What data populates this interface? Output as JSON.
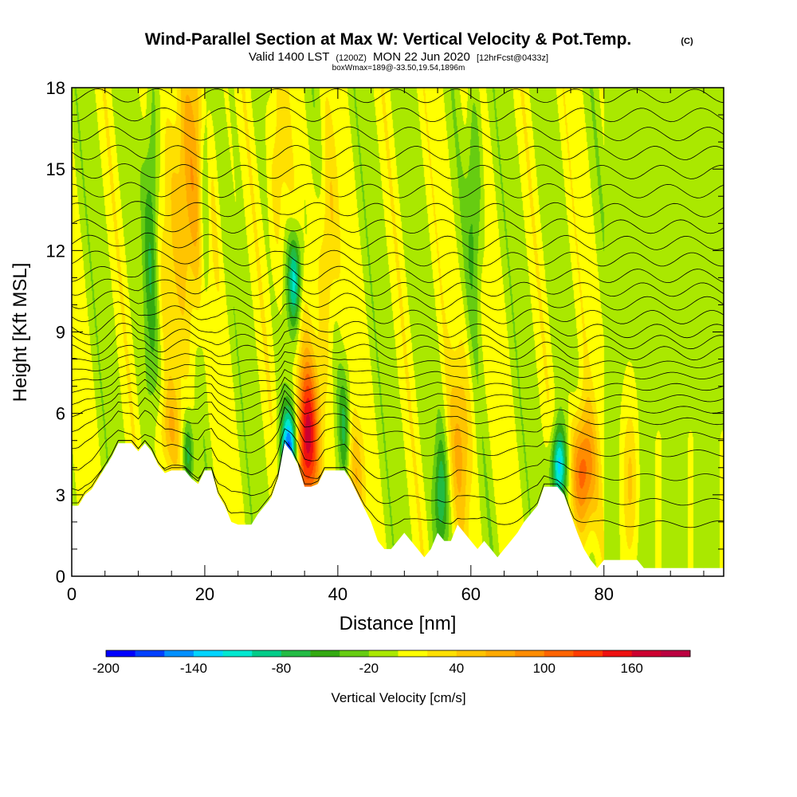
{
  "chart_data": {
    "type": "heatmap",
    "title": "Wind-Parallel Section at Max W: Vertical Velocity & Pot.Temp.",
    "title_mark": "(C)",
    "subtitle": {
      "valid_prefix": "Valid 1400 LST",
      "valid_utc": "(1200Z)",
      "valid_date": "MON 22 Jun 2020",
      "forecast": "[12hrFcst@0433z]"
    },
    "box_note": "boxWmax=189@-33.50,19.54,1896m",
    "xlabel": "Distance [nm]",
    "ylabel": "Height [Kft MSL]",
    "xlim": [
      0,
      98
    ],
    "ylim": [
      0,
      18
    ],
    "xticks": [
      "0",
      "20",
      "40",
      "60",
      "80"
    ],
    "xtick_values": [
      0,
      20,
      40,
      60,
      80
    ],
    "yticks": [
      "0",
      "3",
      "6",
      "9",
      "12",
      "15",
      "18"
    ],
    "ytick_values": [
      0,
      3,
      6,
      9,
      12,
      15,
      18
    ],
    "colorbar": {
      "label": "Vertical Velocity [cm/s]",
      "ticks": [
        "-200",
        "-140",
        "-80",
        "-20",
        "40",
        "100",
        "160"
      ],
      "tick_values": [
        -200,
        -140,
        -80,
        -20,
        40,
        100,
        160
      ],
      "levels": [
        -200,
        -180,
        -160,
        -140,
        -120,
        -100,
        -80,
        -60,
        -40,
        -20,
        0,
        20,
        40,
        60,
        80,
        100,
        120,
        140,
        160,
        180
      ],
      "colors": [
        "#0000ff",
        "#0040ff",
        "#0090ff",
        "#00d4ff",
        "#00e8d0",
        "#00cc88",
        "#22bb44",
        "#33aa11",
        "#66cc11",
        "#aae800",
        "#ffff00",
        "#ffe000",
        "#ffc400",
        "#ffaa00",
        "#ff8c00",
        "#ff6400",
        "#ff3c00",
        "#ee1010",
        "#cc0030",
        "#bb0040"
      ]
    },
    "terrain_kft": [
      [
        0,
        2.6
      ],
      [
        1,
        2.6
      ],
      [
        2,
        3.0
      ],
      [
        3,
        3.2
      ],
      [
        4,
        3.6
      ],
      [
        5,
        4.0
      ],
      [
        6,
        4.4
      ],
      [
        7,
        4.9
      ],
      [
        9,
        4.9
      ],
      [
        10,
        4.6
      ],
      [
        11,
        4.9
      ],
      [
        12,
        4.6
      ],
      [
        13,
        4.1
      ],
      [
        14,
        3.8
      ],
      [
        15,
        3.9
      ],
      [
        17,
        3.9
      ],
      [
        18,
        3.6
      ],
      [
        19,
        3.4
      ],
      [
        20,
        3.9
      ],
      [
        21,
        3.9
      ],
      [
        22,
        3.0
      ],
      [
        23,
        2.6
      ],
      [
        24,
        2.0
      ],
      [
        25,
        1.9
      ],
      [
        27,
        1.9
      ],
      [
        28,
        2.3
      ],
      [
        29,
        2.6
      ],
      [
        30,
        2.9
      ],
      [
        31,
        3.6
      ],
      [
        32,
        4.9
      ],
      [
        33,
        4.6
      ],
      [
        34,
        4.1
      ],
      [
        35,
        3.3
      ],
      [
        36,
        3.3
      ],
      [
        37,
        3.4
      ],
      [
        38,
        3.9
      ],
      [
        40,
        3.9
      ],
      [
        41,
        3.9
      ],
      [
        42,
        3.5
      ],
      [
        43,
        3.0
      ],
      [
        44,
        2.5
      ],
      [
        45,
        2.0
      ],
      [
        46,
        1.3
      ],
      [
        47,
        1.0
      ],
      [
        48,
        1.0
      ],
      [
        49,
        1.3
      ],
      [
        50,
        1.6
      ],
      [
        51,
        1.3
      ],
      [
        52,
        1.0
      ],
      [
        53,
        0.7
      ],
      [
        54,
        1.0
      ],
      [
        55,
        1.6
      ],
      [
        56,
        1.3
      ],
      [
        57,
        1.3
      ],
      [
        58,
        1.9
      ],
      [
        59,
        1.6
      ],
      [
        60,
        1.3
      ],
      [
        61,
        1.0
      ],
      [
        62,
        1.3
      ],
      [
        63,
        1.0
      ],
      [
        64,
        0.7
      ],
      [
        65,
        1.0
      ],
      [
        66,
        1.3
      ],
      [
        67,
        1.6
      ],
      [
        68,
        2.0
      ],
      [
        70,
        2.6
      ],
      [
        71,
        3.3
      ],
      [
        73,
        3.3
      ],
      [
        74,
        3.0
      ],
      [
        75,
        2.3
      ],
      [
        76,
        1.6
      ],
      [
        77,
        1.0
      ],
      [
        78,
        0.6
      ],
      [
        79,
        0.3
      ],
      [
        80,
        0.6
      ],
      [
        81,
        0.6
      ],
      [
        85,
        0.6
      ],
      [
        86,
        0.3
      ],
      [
        98,
        0.3
      ]
    ],
    "updraft_cores": [
      {
        "x": 35.2,
        "z": 5.0,
        "w": 175,
        "sx": 1.3,
        "sz": 2.0
      },
      {
        "x": 76.8,
        "z": 3.8,
        "w": 120,
        "sx": 1.3,
        "sz": 1.6
      },
      {
        "x": 17.5,
        "z": 14.0,
        "w": 75,
        "sx": 2.2,
        "sz": 4.0
      },
      {
        "x": 14.5,
        "z": 5.3,
        "w": 50,
        "sx": 1.2,
        "sz": 1.2
      },
      {
        "x": 42.5,
        "z": 3.5,
        "w": 55,
        "sx": 1.0,
        "sz": 1.5
      },
      {
        "x": 58.5,
        "z": 5.0,
        "w": 55,
        "sx": 1.2,
        "sz": 2.5
      },
      {
        "x": 38.5,
        "z": 12.0,
        "w": 50,
        "sx": 1.0,
        "sz": 3.0
      },
      {
        "x": 31.0,
        "z": 15.0,
        "w": 40,
        "sx": 1.0,
        "sz": 3.0
      },
      {
        "x": 84.0,
        "z": 3.5,
        "w": 45,
        "sx": 0.8,
        "sz": 2.0
      }
    ],
    "downdraft_cores": [
      {
        "x": 32.8,
        "z": 4.5,
        "w": -190,
        "sx": 0.9,
        "sz": 1.3
      },
      {
        "x": 73.2,
        "z": 4.0,
        "w": -140,
        "sx": 0.8,
        "sz": 1.0
      },
      {
        "x": 33.5,
        "z": 11.0,
        "w": -110,
        "sx": 0.7,
        "sz": 1.2
      },
      {
        "x": 17.5,
        "z": 4.5,
        "w": -70,
        "sx": 0.6,
        "sz": 1.0
      },
      {
        "x": 12.0,
        "z": 13.0,
        "w": -60,
        "sx": 0.8,
        "sz": 4.0
      },
      {
        "x": 20.0,
        "z": 14.0,
        "w": -60,
        "sx": 0.6,
        "sz": 3.5
      },
      {
        "x": 55.5,
        "z": 3.0,
        "w": -70,
        "sx": 0.7,
        "sz": 1.5
      },
      {
        "x": 41.0,
        "z": 5.5,
        "w": -55,
        "sx": 0.6,
        "sz": 1.5
      },
      {
        "x": 60.5,
        "z": 14.0,
        "w": -50,
        "sx": 0.8,
        "sz": 3.0
      }
    ],
    "isentropes_kft": [
      2.5,
      3.2,
      4.0,
      4.8,
      5.4,
      5.9,
      6.3,
      6.7,
      7.1,
      7.5,
      7.9,
      8.3,
      8.7,
      9.1,
      9.6,
      10.1,
      10.6,
      11.1,
      11.7,
      12.3,
      12.9,
      13.5,
      14.2,
      14.9,
      15.6,
      16.3,
      17.0,
      17.7
    ]
  }
}
